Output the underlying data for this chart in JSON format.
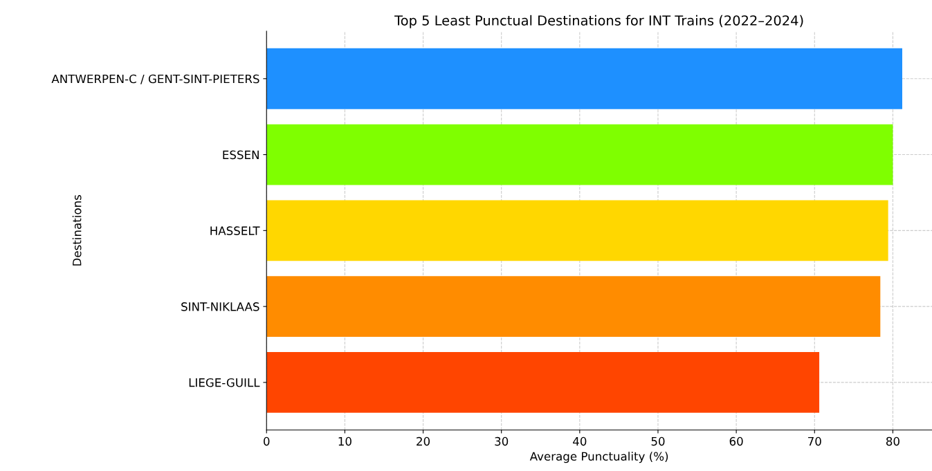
{
  "chart_data": {
    "type": "bar",
    "orientation": "horizontal",
    "title": "Top 5 Least Punctual Destinations for INT Trains (2022–2024)",
    "xlabel": "Average Punctuality (%)",
    "ylabel": "Destinations",
    "categories": [
      "ANTWERPEN-C / GENT-SINT-PIETERS",
      "ESSEN",
      "HASSELT",
      "SINT-NIKLAAS",
      "LIEGE-GUILL"
    ],
    "values": [
      81.2,
      80.0,
      79.4,
      78.4,
      70.6
    ],
    "colors": [
      "#1e90ff",
      "#7fff00",
      "#ffd700",
      "#ff8c00",
      "#ff4500"
    ],
    "xlim": [
      0,
      85
    ],
    "xticks": [
      0,
      10,
      20,
      30,
      40,
      50,
      60,
      70,
      80
    ],
    "grid": true
  }
}
